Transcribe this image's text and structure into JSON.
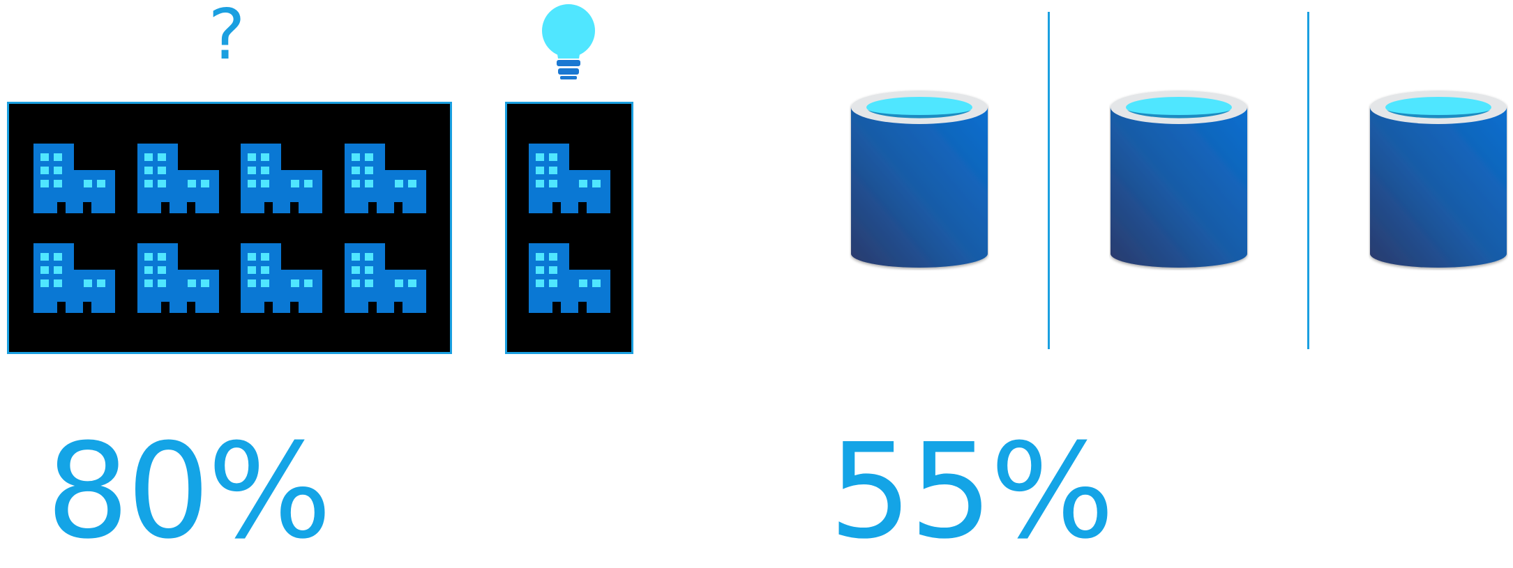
{
  "question_symbol": "?",
  "stats": {
    "left": "80%",
    "right": "55%"
  },
  "colors": {
    "accent": "#1a9fe0",
    "building": "#0a78d4",
    "window": "#50e6ff",
    "box_background": "#000000",
    "database_top": "#50e6ff",
    "database_body": "#1565b4"
  },
  "icons": {
    "large_box_building_count": 8,
    "small_box_building_count": 2,
    "database_count": 3,
    "idea": "lightbulb-icon",
    "question": "question-mark-icon",
    "building": "office-building-icon",
    "database": "database-icon"
  }
}
